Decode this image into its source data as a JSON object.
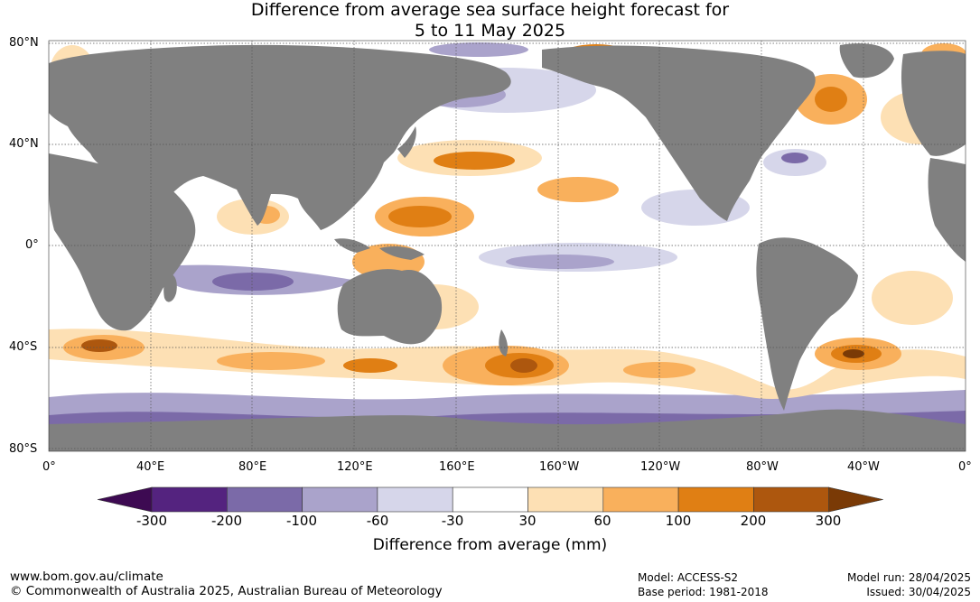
{
  "title_line1": "Difference from average sea surface height forecast for",
  "title_line2": "5 to 11 May 2025",
  "lat_labels": [
    "80°N",
    "40°N",
    "0°",
    "40°S",
    "80°S"
  ],
  "lon_labels": [
    "0°",
    "40°E",
    "80°E",
    "120°E",
    "160°E",
    "160°W",
    "120°W",
    "80°W",
    "40°W",
    "0°"
  ],
  "colorbar": {
    "title": "Difference from average (mm)",
    "ticks": [
      "-300",
      "-200",
      "-100",
      "-60",
      "-30",
      "30",
      "60",
      "100",
      "200",
      "300"
    ],
    "colors": [
      "#3d0a52",
      "#54237f",
      "#7b6aa8",
      "#aaa3cb",
      "#d6d6ea",
      "#ffffff",
      "#fde0b4",
      "#f9b05c",
      "#e07f14",
      "#ad570e",
      "#7a3a06"
    ]
  },
  "colors": {
    "land": "#808080",
    "ocean": "#ffffff",
    "grid": "#555555"
  },
  "footer": {
    "url": "www.bom.gov.au/climate",
    "copyright": "© Commonwealth of Australia 2025, Australian Bureau of Meteorology",
    "model": "Model: ACCESS-S2",
    "base_period": "Base period: 1981-2018",
    "model_run": "Model run: 28/04/2025",
    "issued": "Issued: 30/04/2025"
  }
}
